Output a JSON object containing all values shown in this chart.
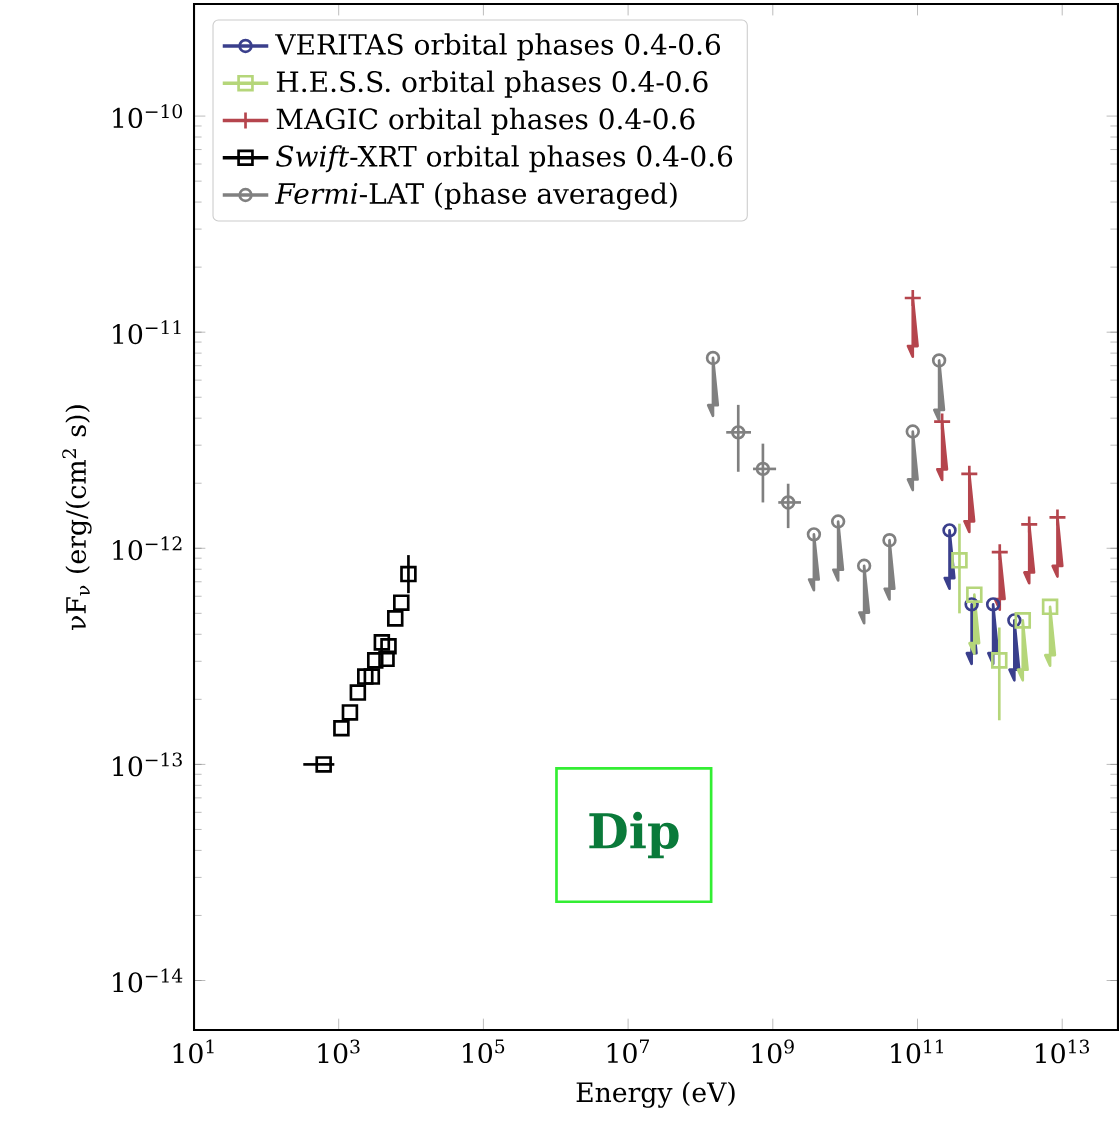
{
  "chart_data": {
    "type": "scatter",
    "xlabel": "Energy (eV)",
    "ylabel": "νF$_{ν}$ (erg/(cm$^{2}$ s))",
    "log": "xy",
    "legend": "top left",
    "grid": false,
    "xlim": [
      10,
      59000000000000.0
    ],
    "ylim": [
      5.9e-15,
      3.3e-10
    ],
    "xticks": [
      {
        "value": 10,
        "label": "10$^{1}$"
      },
      {
        "value": 1000,
        "label": "10$^{3}$"
      },
      {
        "value": 100000,
        "label": "10$^{5}$"
      },
      {
        "value": 10000000.0,
        "label": "10$^{7}$"
      },
      {
        "value": 1000000000.0,
        "label": "10$^{9}$"
      },
      {
        "value": 100000000000.0,
        "label": "10$^{11}$"
      },
      {
        "value": 10000000000000.0,
        "label": "10$^{13}$"
      }
    ],
    "yticks": [
      {
        "value": 1e-14,
        "label": "10$^{−14}$"
      },
      {
        "value": 1e-13,
        "label": "10$^{−13}$"
      },
      {
        "value": 1e-12,
        "label": "10$^{−12}$"
      },
      {
        "value": 1e-11,
        "label": "10$^{−11}$"
      },
      {
        "value": 1e-10,
        "label": "10$^{−10}$"
      }
    ],
    "annotations": [
      "Dip"
    ],
    "series": [
      {
        "name": "VERITAS orbital phases 0.4-0.6",
        "color": "#3a3f8c",
        "marker": "circle",
        "x": [
          277000000000.0,
          560000000000.0,
          1110000000000.0,
          2180000000000.0
        ],
        "values": [
          1.21e-12,
          5.5e-13,
          5.5e-13,
          4.64e-13
        ],
        "errors": [
          [
            6.5e-13,
            1.21e-12
          ],
          [
            2.92e-13,
            5.5e-13
          ],
          [
            2.92e-13,
            5.5e-13
          ],
          [
            2.45e-13,
            4.64e-13
          ]
        ]
      },
      {
        "name": "H.E.S.S. orbital phases 0.4-0.6",
        "color": "#b5d67a",
        "marker": "square",
        "x": [
          380000000000.0,
          610000000000.0,
          1350000000000.0,
          2850000000000.0,
          6800000000000.0
        ],
        "values": [
          8.8e-13,
          6.1e-13,
          3.03e-13,
          4.64e-13,
          5.36e-13
        ],
        "errors": [
          [
            5e-13,
            1.3e-12
          ],
          [
            3.25e-13,
            6.1e-13
          ],
          [
            1.6e-13,
            4.3e-13
          ],
          [
            2.45e-13,
            4.64e-13
          ],
          [
            2.86e-13,
            5.36e-13
          ]
        ]
      },
      {
        "name": "MAGIC orbital phases 0.4-0.6",
        "color": "#b5454d",
        "marker": "cross",
        "x": [
          86000000000.0,
          219000000000.0,
          520000000000.0,
          1370000000000.0,
          3500000000000.0,
          8600000000000.0
        ],
        "values": [
          1.44e-11,
          3.86e-12,
          2.21e-12,
          9.6e-13,
          1.29e-12,
          1.39e-12
        ],
        "errors": [
          [
            7.7e-12,
            1.44e-11
          ],
          [
            2.07e-12,
            3.86e-12
          ],
          [
            1.19e-12,
            2.21e-12
          ],
          [
            5.2e-13,
            9.6e-13
          ],
          [
            6.9e-13,
            1.29e-12
          ],
          [
            7.4e-13,
            1.39e-12
          ]
        ]
      },
      {
        "name": "*Swift*-XRT orbital phases 0.4-0.6",
        "color": "#000000",
        "marker": "square",
        "x": [
          620,
          1090,
          1430,
          1840,
          2330,
          2870,
          3200,
          3950,
          4580,
          4880,
          6050,
          7330,
          9200
        ],
        "values": [
          1e-13,
          1.47e-13,
          1.74e-13,
          2.15e-13,
          2.55e-13,
          2.55e-13,
          3.03e-13,
          3.67e-13,
          3.08e-13,
          3.52e-13,
          4.74e-13,
          5.6e-13,
          7.6e-13
        ],
        "errors": [
          null,
          null,
          null,
          null,
          null,
          null,
          null,
          null,
          null,
          null,
          null,
          null,
          [
            6.2e-13,
            9.3e-13
          ]
        ],
        "xerrors": [
          [
            324,
            870
          ],
          null,
          null,
          null,
          null,
          null,
          null,
          null,
          null,
          null,
          null,
          null,
          null
        ]
      },
      {
        "name": "*Fermi*-LAT (phase averaged)",
        "color": "#808080",
        "marker": "circle",
        "x": [
          149000000.0,
          333000000.0,
          730000000.0,
          1630000000.0,
          3700000000.0,
          8000000000.0,
          18300000000.0,
          41000000000.0,
          86000000000.0,
          199000000000.0
        ],
        "values": [
          7.6e-12,
          3.44e-12,
          2.33e-12,
          1.63e-12,
          1.16e-12,
          1.33e-12,
          8.3e-13,
          1.09e-12,
          3.47e-12,
          7.4e-12
        ],
        "errors": [
          [
            4.1e-12,
            7.6e-12
          ],
          [
            2.26e-12,
            4.61e-12
          ],
          [
            1.63e-12,
            3.05e-12
          ],
          [
            1.24e-12,
            1.99e-12
          ],
          [
            6.4e-13,
            1.16e-12
          ],
          [
            7.1e-13,
            1.33e-12
          ],
          [
            4.5e-13,
            8.3e-13
          ],
          [
            5.8e-13,
            1.09e-12
          ],
          [
            1.86e-12,
            3.47e-12
          ],
          [
            3.9e-12,
            7.4e-12
          ]
        ],
        "xerrors": [
          null,
          [
            227000000.0,
            500000000.0
          ],
          [
            533000000.0,
            1110000000.0
          ],
          [
            1190000000.0,
            2450000000.0
          ],
          null,
          null,
          null,
          null,
          null,
          null
        ]
      }
    ]
  }
}
